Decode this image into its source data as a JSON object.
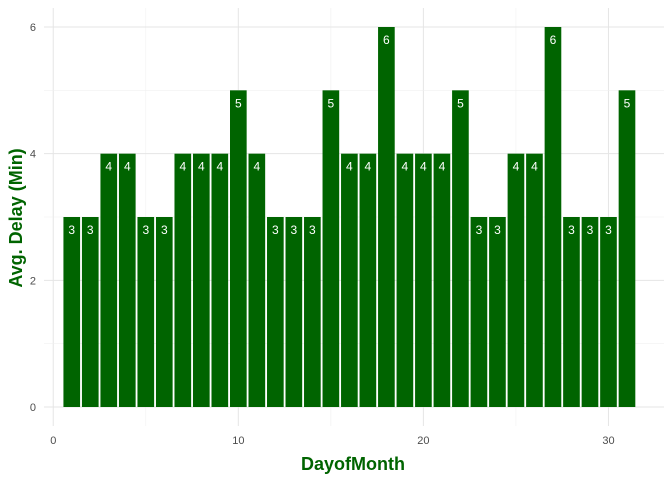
{
  "chart_data": {
    "type": "bar",
    "x": [
      1,
      2,
      3,
      4,
      5,
      6,
      7,
      8,
      9,
      10,
      11,
      12,
      13,
      14,
      15,
      16,
      17,
      18,
      19,
      20,
      21,
      22,
      23,
      24,
      25,
      26,
      27,
      28,
      29,
      30,
      31
    ],
    "values": [
      3,
      3,
      4,
      4,
      3,
      3,
      4,
      4,
      4,
      5,
      4,
      3,
      3,
      3,
      5,
      4,
      4,
      6,
      4,
      4,
      4,
      5,
      3,
      3,
      4,
      4,
      6,
      3,
      3,
      3,
      5
    ],
    "title": "",
    "xlabel": "DayofMonth",
    "ylabel": "Avg. Delay (Min)",
    "xlim": [
      -0.5,
      33
    ],
    "ylim": [
      -0.3,
      6.3
    ],
    "x_ticks": [
      0,
      10,
      20,
      30
    ],
    "y_ticks": [
      0,
      2,
      4,
      6
    ],
    "grid": true,
    "bar_color": "#006400",
    "label_color": "#ffffff",
    "axis_title_color": "#006400"
  }
}
